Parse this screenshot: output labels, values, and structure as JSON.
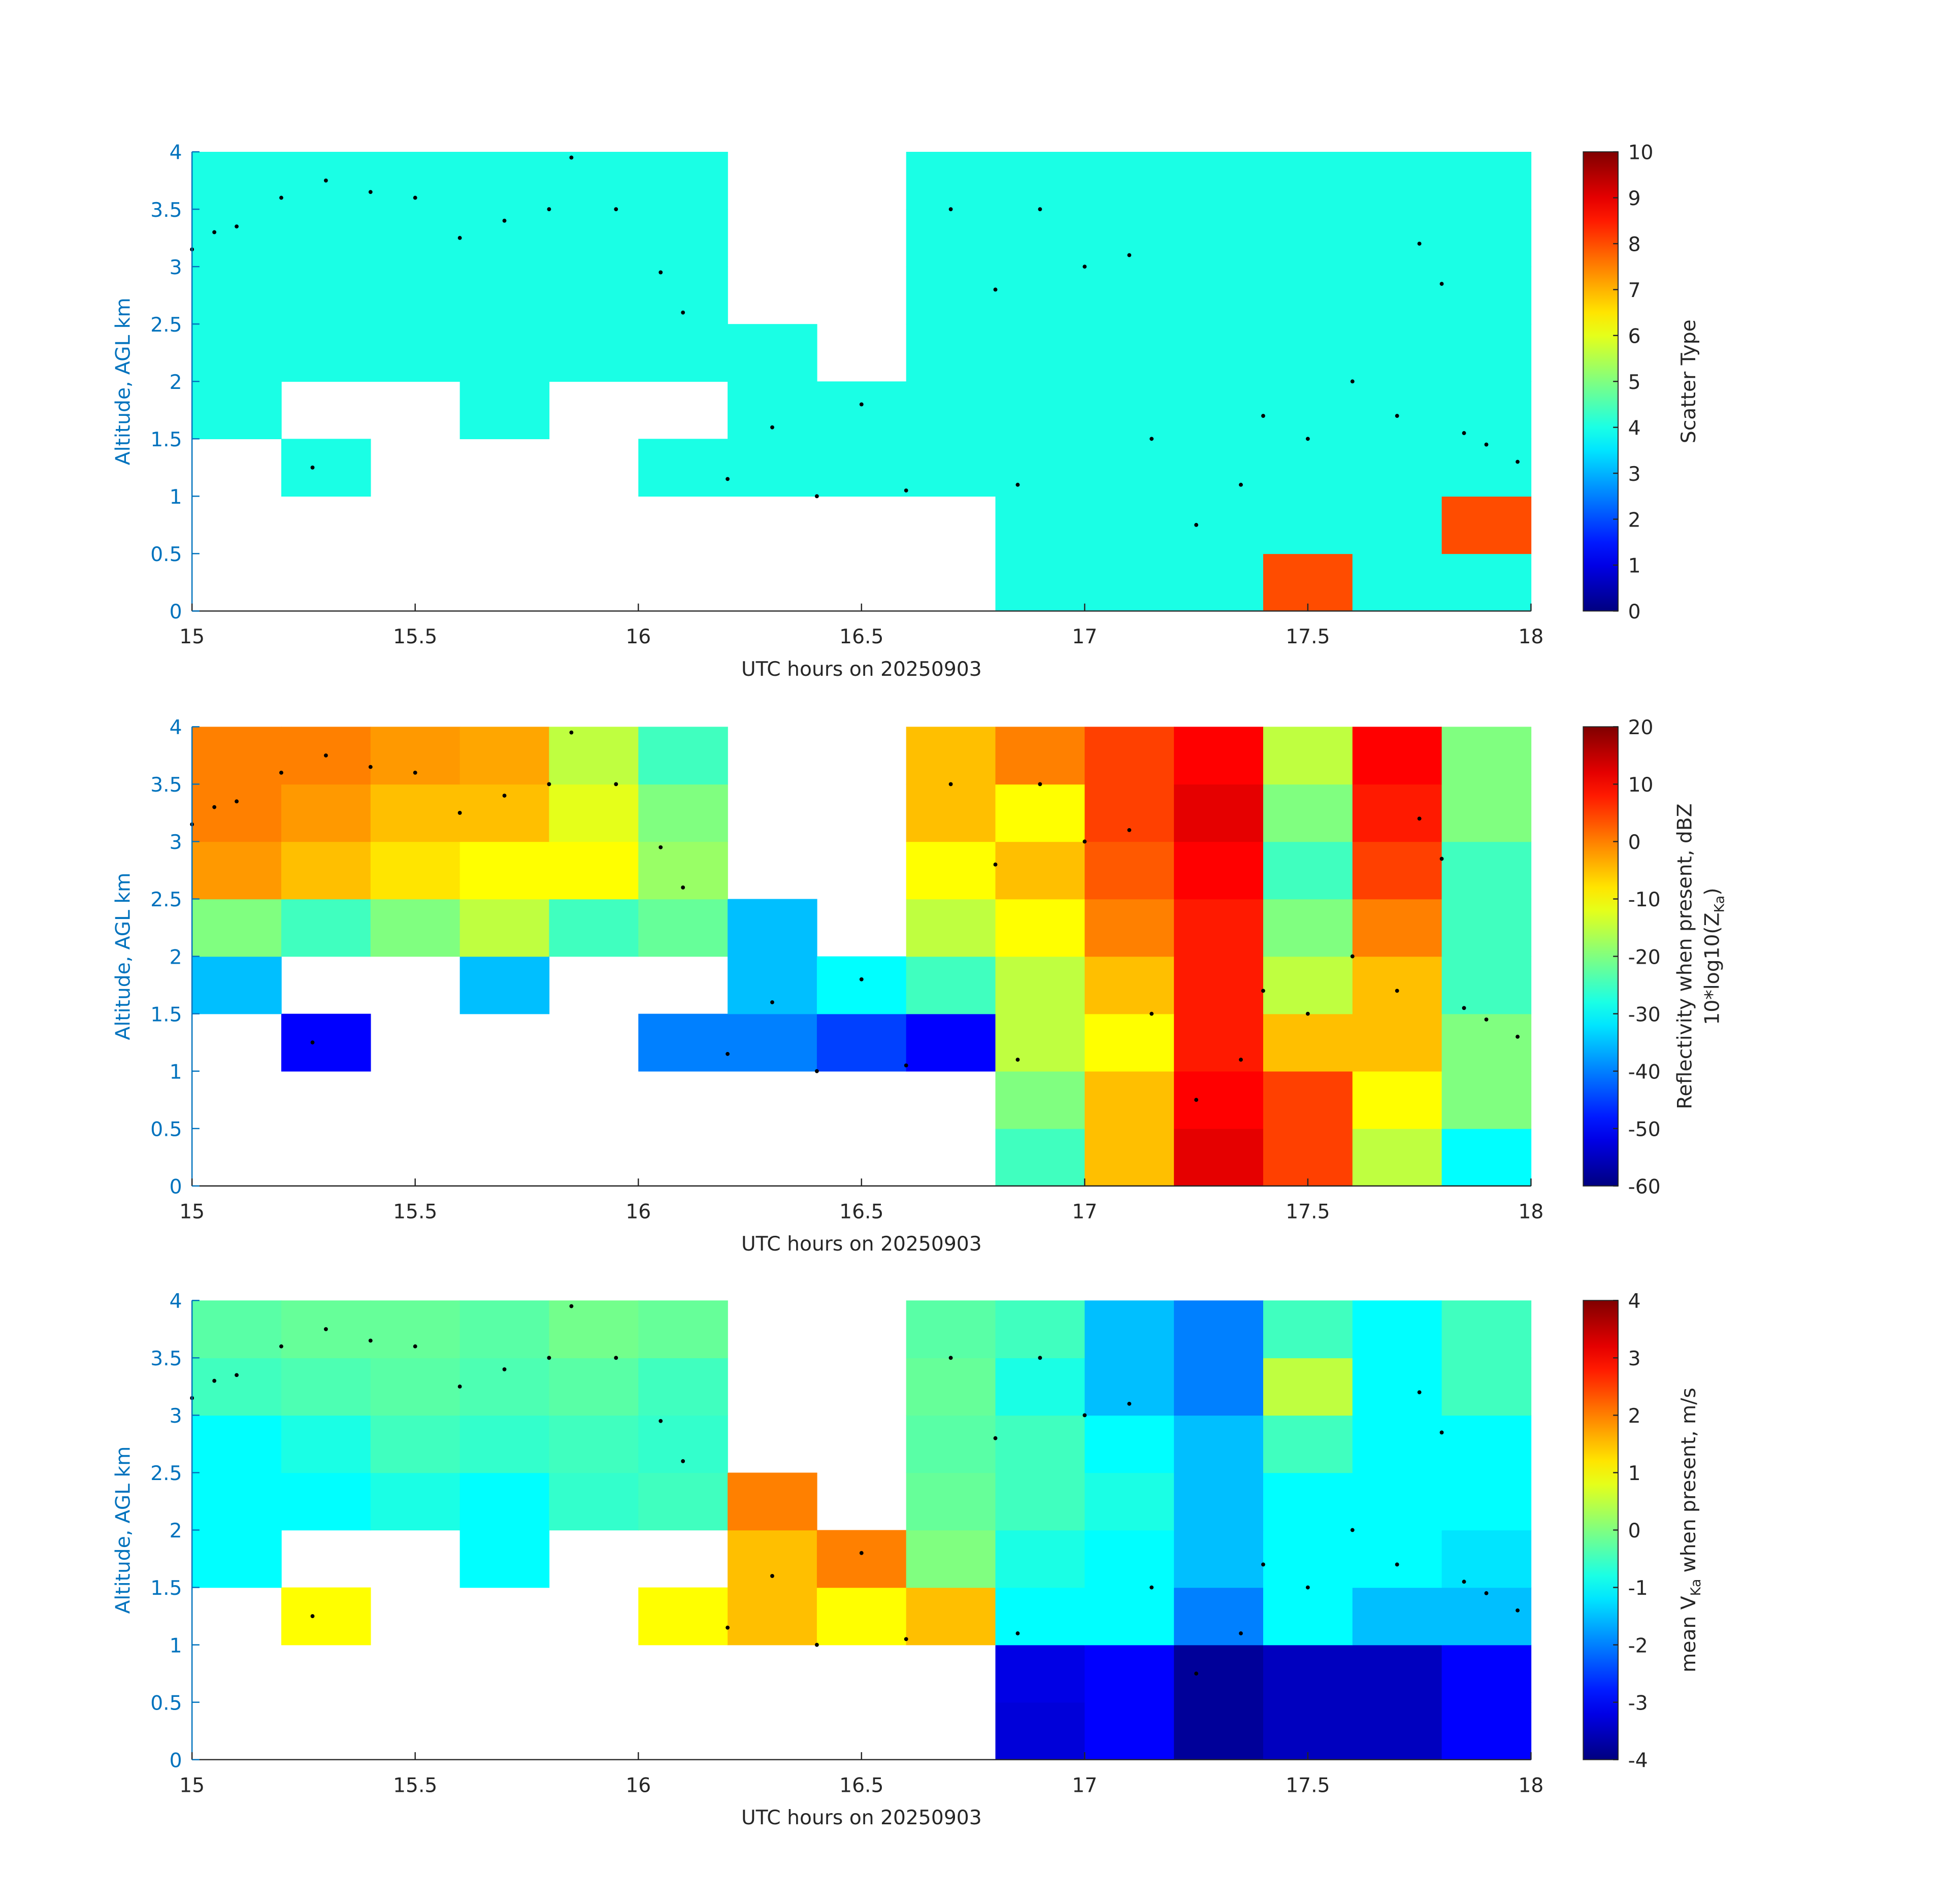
{
  "chart_data": [
    {
      "type": "heatmap",
      "xlabel": "UTC hours on 20250903",
      "ylabel": "Altitude, AGL km",
      "colorbar_label": [
        "Scatter Type"
      ],
      "colormap": "jet",
      "xlim": [
        15,
        18
      ],
      "ylim": [
        0,
        4
      ],
      "xticks": [
        15,
        15.5,
        16,
        16.5,
        17,
        17.5,
        18
      ],
      "yticks": [
        0,
        0.5,
        1,
        1.5,
        2,
        2.5,
        3,
        3.5,
        4
      ],
      "clim": [
        0,
        10
      ],
      "cticks": [
        0,
        1,
        2,
        3,
        4,
        5,
        6,
        7,
        8,
        9,
        10
      ],
      "x": [
        15.1,
        15.3,
        15.5,
        15.7,
        15.9,
        16.1,
        16.3,
        16.5,
        16.7,
        16.9,
        17.1,
        17.3,
        17.5,
        17.7,
        17.9
      ],
      "y": [
        0.25,
        0.75,
        1.25,
        1.75,
        2.25,
        2.75,
        3.25,
        3.75
      ],
      "z": [
        [
          null,
          null,
          null,
          null,
          null,
          null,
          null,
          null,
          null,
          4,
          4,
          4,
          8,
          4,
          4
        ],
        [
          null,
          null,
          null,
          null,
          null,
          null,
          null,
          null,
          null,
          4,
          4,
          4,
          4,
          4,
          8
        ],
        [
          null,
          4,
          null,
          null,
          null,
          4,
          4,
          4,
          4,
          4,
          4,
          4,
          4,
          4,
          4
        ],
        [
          4,
          null,
          null,
          4,
          null,
          null,
          4,
          4,
          4,
          4,
          4,
          4,
          4,
          4,
          4
        ],
        [
          4,
          4,
          4,
          4,
          4,
          4,
          4,
          null,
          4,
          4,
          4,
          4,
          4,
          4,
          4
        ],
        [
          4,
          4,
          4,
          4,
          4,
          4,
          null,
          null,
          4,
          4,
          4,
          4,
          4,
          4,
          4
        ],
        [
          4,
          4,
          4,
          4,
          4,
          4,
          null,
          null,
          4,
          4,
          4,
          4,
          4,
          4,
          4
        ],
        [
          4,
          4,
          4,
          4,
          4,
          4,
          null,
          null,
          4,
          4,
          4,
          4,
          4,
          4,
          4
        ]
      ],
      "points": {
        "x": [
          15.0,
          15.05,
          15.1,
          15.2,
          15.3,
          15.4,
          15.5,
          15.6,
          15.7,
          15.8,
          15.85,
          15.95,
          16.05,
          16.1,
          15.27,
          16.2,
          16.3,
          16.4,
          16.5,
          16.6,
          16.7,
          16.8,
          16.85,
          16.9,
          17.0,
          17.1,
          17.15,
          17.25,
          17.35,
          17.4,
          17.5,
          17.6,
          17.7,
          17.75,
          17.8,
          17.85,
          17.9,
          17.97
        ],
        "y": [
          3.15,
          3.3,
          3.35,
          3.6,
          3.75,
          3.65,
          3.6,
          3.25,
          3.4,
          3.5,
          3.95,
          3.5,
          2.95,
          2.6,
          1.25,
          1.15,
          1.6,
          1.0,
          1.8,
          1.05,
          3.5,
          2.8,
          1.1,
          3.5,
          3.0,
          3.1,
          1.5,
          0.75,
          1.1,
          1.7,
          1.5,
          2.0,
          1.7,
          3.2,
          2.85,
          1.55,
          1.45,
          1.3
        ]
      }
    },
    {
      "type": "heatmap",
      "xlabel": "UTC hours on 20250903",
      "ylabel": "Altitude, AGL km",
      "colorbar_label": [
        "Reflectivity when present, dBZ",
        [
          "10*log10(Z",
          "Ka",
          ")"
        ]
      ],
      "colormap": "jet",
      "xlim": [
        15,
        18
      ],
      "ylim": [
        0,
        4
      ],
      "xticks": [
        15,
        15.5,
        16,
        16.5,
        17,
        17.5,
        18
      ],
      "yticks": [
        0,
        0.5,
        1,
        1.5,
        2,
        2.5,
        3,
        3.5,
        4
      ],
      "clim": [
        -60,
        20
      ],
      "cticks": [
        -60,
        -50,
        -40,
        -30,
        -20,
        -10,
        0,
        10,
        20
      ],
      "x": [
        15.1,
        15.3,
        15.5,
        15.7,
        15.9,
        16.1,
        16.3,
        16.5,
        16.7,
        16.9,
        17.1,
        17.3,
        17.5,
        17.7,
        17.9
      ],
      "y": [
        0.25,
        0.75,
        1.25,
        1.75,
        2.25,
        2.75,
        3.25,
        3.75
      ],
      "z": [
        [
          null,
          null,
          null,
          null,
          null,
          null,
          null,
          null,
          null,
          -25,
          -5,
          12,
          5,
          -15,
          -30
        ],
        [
          null,
          null,
          null,
          null,
          null,
          null,
          null,
          null,
          null,
          -20,
          -5,
          10,
          5,
          -10,
          -20
        ],
        [
          null,
          -50,
          null,
          null,
          null,
          -40,
          -40,
          -45,
          -50,
          -15,
          -10,
          8,
          -5,
          -5,
          -20
        ],
        [
          -35,
          null,
          null,
          -35,
          null,
          null,
          -35,
          -30,
          -25,
          -15,
          -5,
          8,
          -15,
          -5,
          -25
        ],
        [
          -20,
          -25,
          -20,
          -15,
          -25,
          -22,
          -35,
          null,
          -15,
          -10,
          0,
          8,
          -20,
          0,
          -25
        ],
        [
          -2,
          -5,
          -8,
          -10,
          -10,
          -18,
          null,
          null,
          -10,
          -5,
          3,
          10,
          -25,
          5,
          -25
        ],
        [
          0,
          -2,
          -5,
          -5,
          -12,
          -20,
          null,
          null,
          -5,
          -10,
          5,
          12,
          -20,
          8,
          -20
        ],
        [
          0,
          0,
          -2,
          -3,
          -15,
          -25,
          null,
          null,
          -5,
          0,
          5,
          10,
          -15,
          10,
          -20
        ]
      ],
      "points": {
        "x": [
          15.0,
          15.05,
          15.1,
          15.2,
          15.3,
          15.4,
          15.5,
          15.6,
          15.7,
          15.8,
          15.85,
          15.95,
          16.05,
          16.1,
          15.27,
          16.2,
          16.3,
          16.4,
          16.5,
          16.6,
          16.7,
          16.8,
          16.85,
          16.9,
          17.0,
          17.1,
          17.15,
          17.25,
          17.35,
          17.4,
          17.5,
          17.6,
          17.7,
          17.75,
          17.8,
          17.85,
          17.9,
          17.97
        ],
        "y": [
          3.15,
          3.3,
          3.35,
          3.6,
          3.75,
          3.65,
          3.6,
          3.25,
          3.4,
          3.5,
          3.95,
          3.5,
          2.95,
          2.6,
          1.25,
          1.15,
          1.6,
          1.0,
          1.8,
          1.05,
          3.5,
          2.8,
          1.1,
          3.5,
          3.0,
          3.1,
          1.5,
          0.75,
          1.1,
          1.7,
          1.5,
          2.0,
          1.7,
          3.2,
          2.85,
          1.55,
          1.45,
          1.3
        ]
      }
    },
    {
      "type": "heatmap",
      "xlabel": "UTC hours on 20250903",
      "ylabel": "Altitude, AGL km",
      "colorbar_label": [
        [
          "mean V",
          "Ka",
          " when present, m/s"
        ]
      ],
      "colormap": "jet",
      "xlim": [
        15,
        18
      ],
      "ylim": [
        0,
        4
      ],
      "xticks": [
        15,
        15.5,
        16,
        16.5,
        17,
        17.5,
        18
      ],
      "yticks": [
        0,
        0.5,
        1,
        1.5,
        2,
        2.5,
        3,
        3.5,
        4
      ],
      "clim": [
        -4,
        4
      ],
      "cticks": [
        -4,
        -3,
        -2,
        -1,
        0,
        1,
        2,
        3,
        4
      ],
      "x": [
        15.1,
        15.3,
        15.5,
        15.7,
        15.9,
        16.1,
        16.3,
        16.5,
        16.7,
        16.9,
        17.1,
        17.3,
        17.5,
        17.7,
        17.9
      ],
      "y": [
        0.25,
        0.75,
        1.25,
        1.75,
        2.25,
        2.75,
        3.25,
        3.75
      ],
      "z": [
        [
          null,
          null,
          null,
          null,
          null,
          null,
          null,
          null,
          null,
          -3.3,
          -3,
          -3.8,
          -3.5,
          -3.5,
          -3
        ],
        [
          null,
          null,
          null,
          null,
          null,
          null,
          null,
          null,
          null,
          -3.2,
          -3,
          -3.8,
          -3.5,
          -3.5,
          -3
        ],
        [
          null,
          1,
          null,
          null,
          null,
          1,
          1.5,
          1,
          1.5,
          -1,
          -1,
          -2,
          -1,
          -1.5,
          -1.5
        ],
        [
          -1,
          null,
          null,
          -1,
          null,
          null,
          1.5,
          2,
          0,
          -0.8,
          -1,
          -1.5,
          -1,
          -1,
          -1.2
        ],
        [
          -1,
          -1,
          -0.8,
          -1,
          -0.6,
          -0.5,
          2,
          null,
          -0.2,
          -0.5,
          -0.8,
          -1.5,
          -1,
          -1,
          -1
        ],
        [
          -1,
          -0.8,
          -0.5,
          -0.6,
          -0.5,
          -0.6,
          null,
          null,
          -0.3,
          -0.5,
          -1,
          -1.5,
          -0.5,
          -1,
          -1
        ],
        [
          -0.5,
          -0.4,
          -0.3,
          -0.4,
          -0.3,
          -0.5,
          null,
          null,
          -0.2,
          -0.8,
          -1.5,
          -2,
          0.5,
          -1,
          -0.5
        ],
        [
          -0.3,
          -0.2,
          -0.2,
          -0.3,
          -0.1,
          -0.2,
          null,
          null,
          -0.3,
          -0.5,
          -1.5,
          -2,
          -0.5,
          -1,
          -0.5
        ]
      ],
      "points": {
        "x": [
          15.0,
          15.05,
          15.1,
          15.2,
          15.3,
          15.4,
          15.5,
          15.6,
          15.7,
          15.8,
          15.85,
          15.95,
          16.05,
          16.1,
          15.27,
          16.2,
          16.3,
          16.4,
          16.5,
          16.6,
          16.7,
          16.8,
          16.85,
          16.9,
          17.0,
          17.1,
          17.15,
          17.25,
          17.35,
          17.4,
          17.5,
          17.6,
          17.7,
          17.75,
          17.8,
          17.85,
          17.9,
          17.97
        ],
        "y": [
          3.15,
          3.3,
          3.35,
          3.6,
          3.75,
          3.65,
          3.6,
          3.25,
          3.4,
          3.5,
          3.95,
          3.5,
          2.95,
          2.6,
          1.25,
          1.15,
          1.6,
          1.0,
          1.8,
          1.05,
          3.5,
          2.8,
          1.1,
          3.5,
          3.0,
          3.1,
          1.5,
          0.75,
          1.1,
          1.7,
          1.5,
          2.0,
          1.7,
          3.2,
          2.85,
          1.55,
          1.45,
          1.3
        ]
      }
    }
  ]
}
